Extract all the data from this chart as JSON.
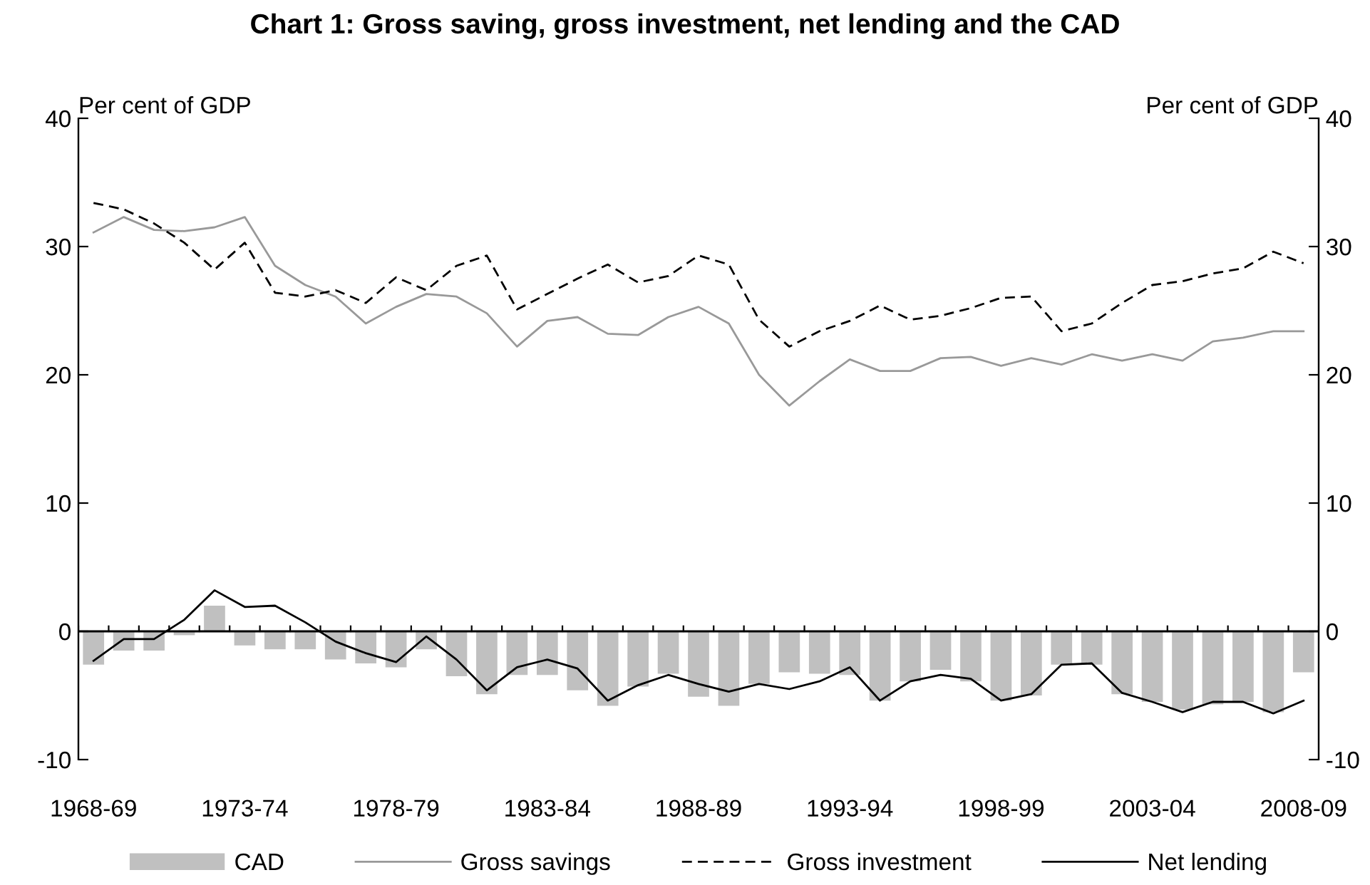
{
  "chart_data": {
    "type": "bar",
    "title": "Chart 1: Gross saving, gross investment, net lending and the CAD",
    "ylabel": "Per cent of GDP",
    "y2label": "Per cent of GDP",
    "categories": [
      "1968-69",
      null,
      null,
      null,
      null,
      "1973-74",
      null,
      null,
      null,
      null,
      "1978-79",
      null,
      null,
      null,
      null,
      "1983-84",
      null,
      null,
      null,
      null,
      "1988-89",
      null,
      null,
      null,
      null,
      "1993-94",
      null,
      null,
      null,
      null,
      "1998-99",
      null,
      null,
      null,
      null,
      "2003-04",
      null,
      null,
      null,
      null,
      "2008-09"
    ],
    "series": [
      {
        "name": "CAD",
        "color": "#c0c0c0",
        "values": [
          -2.6,
          -1.5,
          -1.5,
          -0.3,
          2.0,
          -1.1,
          -1.4,
          -1.4,
          -2.2,
          -2.5,
          -2.8,
          -1.4,
          -3.5,
          -4.9,
          -3.4,
          -3.4,
          -4.6,
          -5.8,
          -4.3,
          -3.3,
          -5.1,
          -5.8,
          -4.1,
          -3.2,
          -3.3,
          -3.4,
          -5.4,
          -3.9,
          -3.0,
          -3.9,
          -5.4,
          -5.0,
          -2.6,
          -2.6,
          -4.9,
          -5.5,
          -6.1,
          -5.7,
          -5.5,
          -6.3,
          -3.2
        ]
      },
      {
        "name": "Gross savings",
        "type": "line",
        "color": "#999999",
        "line_style": "solid",
        "values": [
          31.1,
          32.3,
          31.3,
          31.2,
          31.5,
          32.3,
          28.5,
          27.0,
          26.1,
          24.0,
          25.3,
          26.3,
          26.1,
          24.8,
          22.2,
          24.2,
          24.5,
          23.2,
          23.1,
          24.5,
          25.3,
          24.0,
          20.0,
          17.6,
          19.5,
          21.2,
          20.3,
          20.3,
          21.3,
          21.4,
          20.7,
          21.3,
          20.8,
          21.6,
          21.1,
          21.6,
          21.1,
          22.6,
          22.9,
          23.4,
          23.4
        ]
      },
      {
        "name": "Gross investment",
        "type": "line",
        "color": "#000000",
        "line_style": "dashed",
        "values": [
          33.4,
          32.9,
          31.8,
          30.3,
          28.2,
          30.3,
          26.4,
          26.1,
          26.6,
          25.6,
          27.6,
          26.6,
          28.5,
          29.3,
          25.1,
          26.3,
          27.5,
          28.6,
          27.2,
          27.7,
          29.3,
          28.6,
          24.3,
          22.2,
          23.4,
          24.2,
          25.4,
          24.3,
          24.6,
          25.2,
          26.0,
          26.1,
          23.4,
          24.0,
          25.6,
          27.0,
          27.3,
          27.9,
          28.3,
          29.6,
          28.7
        ]
      },
      {
        "name": "Net lending",
        "type": "line",
        "color": "#000000",
        "line_style": "solid",
        "values": [
          -2.3,
          -0.6,
          -0.6,
          0.9,
          3.2,
          1.9,
          2.0,
          0.7,
          -0.8,
          -1.7,
          -2.4,
          -0.4,
          -2.2,
          -4.6,
          -2.8,
          -2.2,
          -2.9,
          -5.4,
          -4.2,
          -3.4,
          -4.1,
          -4.7,
          -4.1,
          -4.5,
          -3.9,
          -2.8,
          -5.4,
          -3.9,
          -3.4,
          -3.7,
          -5.4,
          -4.9,
          -2.6,
          -2.5,
          -4.8,
          -5.5,
          -6.3,
          -5.5,
          -5.5,
          -6.4,
          -5.4
        ]
      }
    ],
    "ylim": [
      -10,
      40
    ],
    "yticks": [
      -10,
      0,
      10,
      20,
      30,
      40
    ],
    "y2lim": [
      -10,
      40
    ],
    "y2ticks": [
      -10,
      0,
      10,
      20,
      30,
      40
    ],
    "ref_lines": [
      {
        "axis": "y",
        "value": 0,
        "color": "#000000",
        "line_style": "solid"
      }
    ],
    "legend": "bottom",
    "grid": false
  }
}
